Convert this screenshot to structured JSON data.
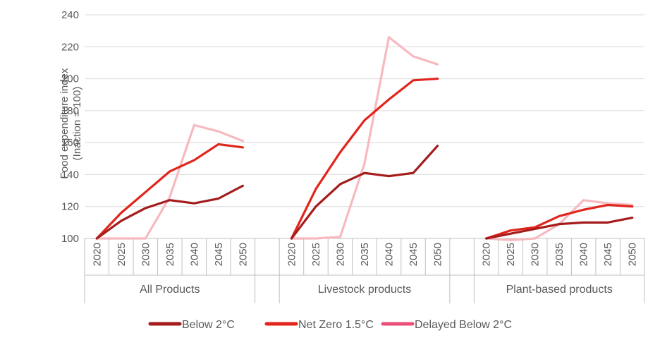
{
  "chart_data": {
    "type": "line",
    "ylabel": "Food expenditure index",
    "ylabel_sub": "(Inaction = 100)",
    "ylim": [
      100,
      240
    ],
    "yticks": [
      100,
      120,
      140,
      160,
      180,
      200,
      220,
      240
    ],
    "grid": true,
    "legend_position": "bottom",
    "groups": [
      {
        "name": "All Products",
        "x": [
          "2020",
          "2025",
          "2030",
          "2035",
          "2040",
          "2045",
          "2050"
        ],
        "series": [
          {
            "name": "Below 2°C",
            "color": "#a51c1c",
            "values": [
              100,
              111,
              119,
              124,
              122,
              125,
              133
            ]
          },
          {
            "name": "Net Zero 1.5°C",
            "color": "#e1251b",
            "values": [
              100,
              116,
              129,
              142,
              149,
              159,
              157
            ]
          },
          {
            "name": "Delayed Below 2°C",
            "color": "#f7b9c0",
            "values": [
              100,
              100,
              100,
              126,
              171,
              167,
              161
            ]
          }
        ]
      },
      {
        "name": "Livestock products",
        "x": [
          "2020",
          "2025",
          "2030",
          "2035",
          "2040",
          "2045",
          "2050"
        ],
        "series": [
          {
            "name": "Below 2°C",
            "color": "#a51c1c",
            "values": [
              100,
              120,
              134,
              141,
              139,
              141,
              158
            ]
          },
          {
            "name": "Net Zero 1.5°C",
            "color": "#e1251b",
            "values": [
              100,
              131,
              154,
              174,
              187,
              199,
              200
            ]
          },
          {
            "name": "Delayed Below 2°C",
            "color": "#f7b9c0",
            "values": [
              100,
              100,
              101,
              147,
              226,
              214,
              209
            ]
          }
        ]
      },
      {
        "name": "Plant-based products",
        "x": [
          "2020",
          "2025",
          "2030",
          "2035",
          "2040",
          "2045",
          "2050"
        ],
        "series": [
          {
            "name": "Below 2°C",
            "color": "#a51c1c",
            "values": [
              100,
              103,
              106,
              109,
              110,
              110,
              113
            ]
          },
          {
            "name": "Net Zero 1.5°C",
            "color": "#e1251b",
            "values": [
              100,
              105,
              107,
              114,
              118,
              121,
              120
            ]
          },
          {
            "name": "Delayed Below 2°C",
            "color": "#f7b9c0",
            "values": [
              100,
              99,
              100,
              109,
              124,
              122,
              121
            ]
          }
        ]
      }
    ],
    "legend": [
      {
        "name": "Below 2°C",
        "color": "#a51c1c"
      },
      {
        "name": "Net Zero 1.5°C",
        "color": "#e1251b"
      },
      {
        "name": "Delayed Below 2°C",
        "color": "#e8507a"
      }
    ]
  }
}
